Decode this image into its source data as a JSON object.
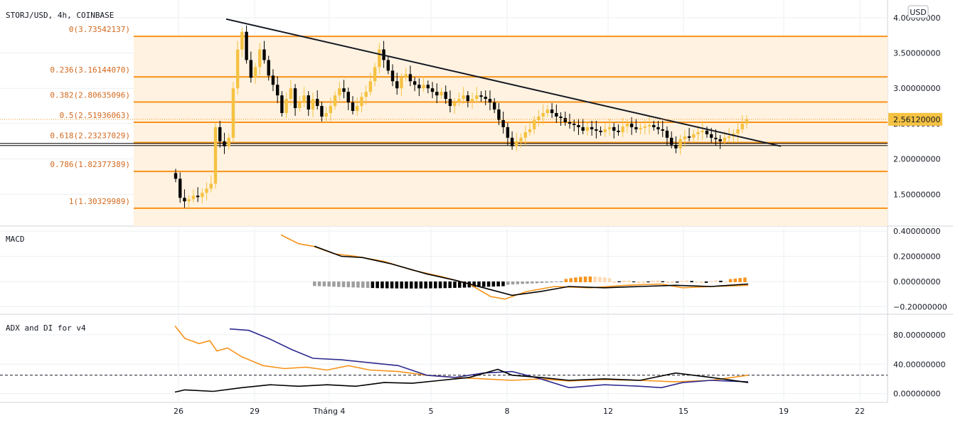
{
  "header": {
    "title": "STORJ/USD, 4h, COINBASE"
  },
  "currency_badge": "USD",
  "colors": {
    "up": "#f5c242",
    "down": "#000000",
    "fib_line": "#f7931a",
    "fib_band": "#fff2e0",
    "macd_line": "#000000",
    "signal_line": "#f7931a",
    "hist_dark": "#000000",
    "hist_grey": "#9e9e9e",
    "hist_orange": "#f7931a",
    "hist_light": "#fdd9b3",
    "adx": "#f7931a",
    "di_plus": "#000000",
    "di_minus": "#2e2a8f",
    "grid": "#eceff2"
  },
  "chart_data": [
    {
      "type": "candlestick",
      "name": "STORJ/USD",
      "x_ticks": [
        "26",
        "29",
        "Tháng 4",
        "5",
        "8",
        "12",
        "15",
        "19",
        "22"
      ],
      "y_ticks": [
        "4.00000000",
        "3.50000000",
        "3.00000000",
        "2.50000000",
        "2.00000000",
        "1.50000000"
      ],
      "ylim": [
        1.05,
        4.25
      ],
      "last_price": "2.56120000",
      "fib_levels": [
        {
          "label": "0(3.73542137)",
          "value": 3.73542137
        },
        {
          "label": "0.236(3.16144070)",
          "value": 3.1614407
        },
        {
          "label": "0.382(2.80635096)",
          "value": 2.80635096
        },
        {
          "label": "0.5(2.51936063)",
          "value": 2.51936063
        },
        {
          "label": "0.618(2.23237029)",
          "value": 2.23237029
        },
        {
          "label": "0.786(1.82377389)",
          "value": 1.82377389
        },
        {
          "label": "1(1.30329989)",
          "value": 1.30329989
        }
      ],
      "trendline": {
        "from": [
          "2021-03-28",
          3.98
        ],
        "to": [
          "2021-04-18",
          2.18
        ]
      },
      "horizontal_line": 2.2,
      "candles_close": [
        1.72,
        1.45,
        1.4,
        1.43,
        1.48,
        1.46,
        1.52,
        1.58,
        1.65,
        2.45,
        2.25,
        2.18,
        2.3,
        3.0,
        3.55,
        3.8,
        3.4,
        3.15,
        3.3,
        3.55,
        3.4,
        3.18,
        3.05,
        2.9,
        2.65,
        2.85,
        3.0,
        2.72,
        2.8,
        2.9,
        2.7,
        2.85,
        2.75,
        2.6,
        2.65,
        2.75,
        2.9,
        3.0,
        2.95,
        2.8,
        2.68,
        2.75,
        2.88,
        2.95,
        3.1,
        3.3,
        3.55,
        3.4,
        3.25,
        3.1,
        3.0,
        3.15,
        3.2,
        3.1,
        3.05,
        3.0,
        3.05,
        3.0,
        2.95,
        2.9,
        2.95,
        2.85,
        2.75,
        2.8,
        2.85,
        2.9,
        2.82,
        2.85,
        2.9,
        2.88,
        2.85,
        2.8,
        2.7,
        2.55,
        2.45,
        2.3,
        2.18,
        2.25,
        2.3,
        2.38,
        2.42,
        2.55,
        2.6,
        2.65,
        2.7,
        2.65,
        2.6,
        2.58,
        2.52,
        2.5,
        2.48,
        2.45,
        2.4,
        2.45,
        2.42,
        2.4,
        2.38,
        2.42,
        2.45,
        2.4,
        2.38,
        2.46,
        2.5,
        2.45,
        2.42,
        2.44,
        2.46,
        2.48,
        2.45,
        2.42,
        2.4,
        2.3,
        2.2,
        2.15,
        2.28,
        2.32,
        2.3,
        2.35,
        2.38,
        2.4,
        2.35,
        2.3,
        2.28,
        2.25,
        2.3,
        2.32,
        2.36,
        2.42,
        2.5,
        2.56
      ],
      "macd": {
        "y_ticks": [
          "0.40000000",
          "0.20000000",
          "0.00000000",
          "−0.20000000"
        ],
        "ylim": [
          -0.26,
          0.44
        ]
      },
      "adx_di": {
        "title": "ADX and DI for v4",
        "y_ticks": [
          "80.00000000",
          "40.00000000",
          "0.00000000"
        ],
        "ylim": [
          -12,
          108
        ],
        "ref_level": 25
      }
    }
  ],
  "panels": {
    "macd_title": "MACD"
  }
}
